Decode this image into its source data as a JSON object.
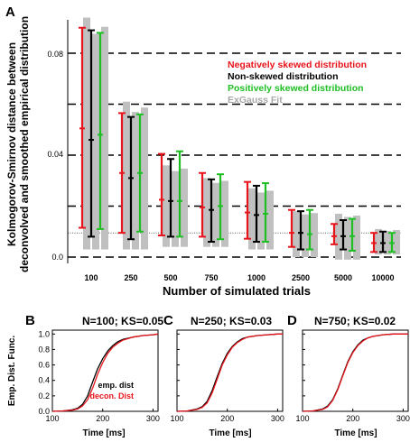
{
  "colors": {
    "negative": "#e8141b",
    "nonskewed": "#000000",
    "positive": "#1fbf24",
    "exgauss": "#c0c0c0",
    "emp_dist": "#000000",
    "decon_dist": "#e8141b"
  },
  "panel_a": {
    "letter": "A",
    "ylabel_line1": "Kolmogorov-Smirnov distance between",
    "ylabel_line2": "deconvolved and smoothed empirical distribution",
    "xlabel": "Number of simulated trials",
    "yticks": [
      "0.0",
      "0.04",
      "0.08"
    ],
    "legend": [
      {
        "label": "Negatively skewed distribution",
        "color": "#e8141b"
      },
      {
        "label": "Non-skewed distribution",
        "color": "#000000"
      },
      {
        "label": "Positively skewed distribution",
        "color": "#1fbf24"
      },
      {
        "label": "ExGauss Fit",
        "color": "#a8a8a8"
      }
    ]
  },
  "panel_b": {
    "letter": "B",
    "title": "N=100; KS=0.05",
    "ylabel": "Emp. Dist. Func.",
    "xlabel": "Time [ms]",
    "xticks": [
      "100",
      "200",
      "300"
    ],
    "yticks": [
      "0.0",
      "0.2",
      "0.4",
      "0.6",
      "0.8",
      "1.0"
    ],
    "legend_emp": "emp. dist",
    "legend_decon": "decon. Dist"
  },
  "panel_c": {
    "letter": "C",
    "title": "N=250; KS=0.03",
    "xlabel": "Time [ms]",
    "xticks": [
      "100",
      "200",
      "300"
    ]
  },
  "panel_d": {
    "letter": "D",
    "title": "N=750; KS=0.02",
    "xlabel": "Time [ms]",
    "xticks": [
      "100",
      "200",
      "300"
    ]
  },
  "chart_data": [
    {
      "type": "bar",
      "subtype": "error-bar",
      "categories": [
        "100",
        "250",
        "500",
        "750",
        "1000",
        "2500",
        "5000",
        "10000"
      ],
      "xlabel": "Number of simulated trials",
      "ylabel": "Kolmogorov-Smirnov distance between deconvolved and smoothed empirical distribution",
      "ylim": [
        -0.002,
        0.094
      ],
      "yticks": [
        0.0,
        0.04,
        0.08
      ],
      "dashed_lines": [
        0.0,
        0.02,
        0.04,
        0.06,
        0.08
      ],
      "dotted_line": 0.0095,
      "grid": false,
      "legend_position": "top-right",
      "series": [
        {
          "name": "Negatively skewed distribution",
          "low": [
            0.0115,
            0.0095,
            0.0085,
            0.008,
            0.0072,
            0.004,
            0.005,
            0.002
          ],
          "mid": [
            0.0505,
            0.033,
            0.0225,
            0.0195,
            0.0175,
            0.0095,
            0.0082,
            0.0055
          ],
          "high": [
            0.09,
            0.0565,
            0.0405,
            0.033,
            0.0295,
            0.0185,
            0.013,
            0.0095
          ]
        },
        {
          "name": "Non-skewed distribution",
          "low": [
            0.008,
            0.007,
            0.008,
            0.006,
            0.006,
            0.003,
            0.003,
            0.002
          ],
          "mid": [
            0.046,
            0.031,
            0.022,
            0.0185,
            0.0165,
            0.0095,
            0.0082,
            0.0055
          ],
          "high": [
            0.089,
            0.055,
            0.0385,
            0.0305,
            0.028,
            0.018,
            0.0145,
            0.01
          ]
        },
        {
          "name": "Positively skewed distribution",
          "low": [
            0.011,
            0.01,
            0.008,
            0.007,
            0.006,
            0.003,
            0.0025,
            0.002
          ],
          "mid": [
            0.048,
            0.033,
            0.022,
            0.02,
            0.017,
            0.009,
            0.0082,
            0.0055
          ],
          "high": [
            0.088,
            0.056,
            0.0415,
            0.0325,
            0.029,
            0.0185,
            0.015,
            0.0095
          ]
        },
        {
          "name": "ExGauss Fit",
          "low": [
            0.003,
            0.003,
            0.004,
            0.004,
            0.003,
            0.0,
            -0.001,
            0.001
          ],
          "mid": [
            0.047,
            0.032,
            0.022,
            0.019,
            0.017,
            0.0095,
            0.0085,
            0.0055
          ],
          "high": [
            0.094,
            0.061,
            0.036,
            0.031,
            0.027,
            0.018,
            0.017,
            0.011
          ]
        }
      ]
    },
    {
      "type": "line",
      "title": "N=100; KS=0.05",
      "xlabel": "Time [ms]",
      "ylabel": "Emp. Dist. Func.",
      "xlim": [
        100,
        310
      ],
      "ylim": [
        0,
        1.05
      ],
      "series": [
        {
          "name": "emp. dist",
          "x": [
            100,
            120,
            140,
            150,
            160,
            170,
            180,
            190,
            200,
            210,
            220,
            230,
            240,
            260,
            280,
            300,
            310
          ],
          "y": [
            0.0,
            0.005,
            0.02,
            0.04,
            0.09,
            0.2,
            0.38,
            0.55,
            0.68,
            0.78,
            0.85,
            0.9,
            0.93,
            0.96,
            0.98,
            0.99,
            1.0
          ]
        },
        {
          "name": "decon. Dist",
          "x": [
            100,
            120,
            140,
            150,
            160,
            170,
            180,
            190,
            200,
            210,
            220,
            230,
            240,
            260,
            280,
            300,
            310
          ],
          "y": [
            0.0,
            0.005,
            0.015,
            0.03,
            0.07,
            0.15,
            0.3,
            0.48,
            0.63,
            0.75,
            0.83,
            0.88,
            0.92,
            0.96,
            0.98,
            0.99,
            1.0
          ]
        }
      ]
    },
    {
      "type": "line",
      "title": "N=250; KS=0.03",
      "xlabel": "Time [ms]",
      "xlim": [
        100,
        310
      ],
      "ylim": [
        0,
        1.05
      ],
      "series": [
        {
          "name": "emp. dist",
          "x": [
            100,
            120,
            140,
            150,
            160,
            170,
            180,
            190,
            200,
            210,
            220,
            230,
            240,
            260,
            280,
            300,
            310
          ],
          "y": [
            0.0,
            0.005,
            0.03,
            0.06,
            0.13,
            0.27,
            0.45,
            0.62,
            0.75,
            0.84,
            0.9,
            0.94,
            0.96,
            0.98,
            0.99,
            1.0,
            1.0
          ]
        },
        {
          "name": "decon. Dist",
          "x": [
            100,
            120,
            140,
            150,
            160,
            170,
            180,
            190,
            200,
            210,
            220,
            230,
            240,
            260,
            280,
            300,
            310
          ],
          "y": [
            0.0,
            0.005,
            0.025,
            0.05,
            0.11,
            0.24,
            0.42,
            0.6,
            0.73,
            0.83,
            0.89,
            0.93,
            0.96,
            0.98,
            0.99,
            1.0,
            1.0
          ]
        }
      ]
    },
    {
      "type": "line",
      "title": "N=750; KS=0.02",
      "xlabel": "Time [ms]",
      "xlim": [
        100,
        310
      ],
      "ylim": [
        0,
        1.05
      ],
      "series": [
        {
          "name": "emp. dist",
          "x": [
            100,
            120,
            140,
            150,
            160,
            170,
            180,
            190,
            200,
            210,
            220,
            230,
            240,
            260,
            280,
            300,
            310
          ],
          "y": [
            0.0,
            0.005,
            0.03,
            0.07,
            0.15,
            0.29,
            0.47,
            0.64,
            0.77,
            0.86,
            0.92,
            0.95,
            0.97,
            0.99,
            1.0,
            1.0,
            1.0
          ]
        },
        {
          "name": "decon. Dist",
          "x": [
            100,
            120,
            140,
            150,
            160,
            170,
            180,
            190,
            200,
            210,
            220,
            230,
            240,
            260,
            280,
            300,
            310
          ],
          "y": [
            0.0,
            0.005,
            0.025,
            0.06,
            0.14,
            0.28,
            0.46,
            0.63,
            0.76,
            0.85,
            0.91,
            0.95,
            0.97,
            0.99,
            1.0,
            1.0,
            1.0
          ]
        }
      ]
    }
  ]
}
